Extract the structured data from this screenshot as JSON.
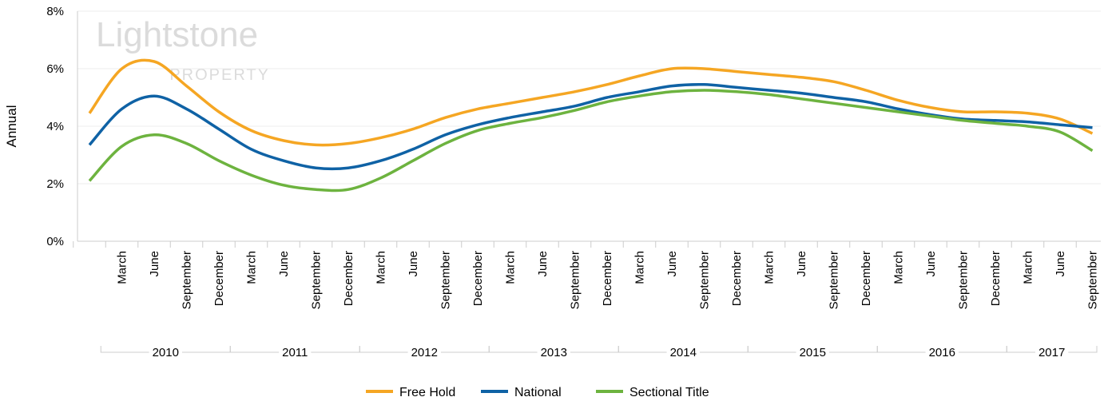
{
  "chart_data": {
    "type": "line",
    "y_label": "Annual",
    "watermark": {
      "title": "Lightstone",
      "subtitle": "PROPERTY"
    },
    "categories": [
      null,
      "March",
      "June",
      "September",
      "December",
      "March",
      "June",
      "September",
      "December",
      "March",
      "June",
      "September",
      "December",
      "March",
      "June",
      "September",
      "December",
      "March",
      "June",
      "September",
      "December",
      "March",
      "June",
      "September",
      "December",
      "March",
      "June",
      "September",
      "December",
      "March",
      "June",
      "September"
    ],
    "x_groups": [
      "2010",
      "2011",
      "2012",
      "2013",
      "2014",
      "2015",
      "2016",
      "2017"
    ],
    "series": [
      {
        "name": "Free Hold",
        "color": "#f5a623",
        "values": [
          4.45,
          6.0,
          6.25,
          5.4,
          4.5,
          3.85,
          3.5,
          3.35,
          3.4,
          3.6,
          3.9,
          4.3,
          4.6,
          4.8,
          5.0,
          5.2,
          5.45,
          5.75,
          6.0,
          6.0,
          5.9,
          5.8,
          5.7,
          5.55,
          5.25,
          4.9,
          4.65,
          4.5,
          4.5,
          4.45,
          4.25,
          3.75
        ]
      },
      {
        "name": "National",
        "color": "#0f62a5",
        "values": [
          3.35,
          4.6,
          5.05,
          4.6,
          3.9,
          3.2,
          2.8,
          2.55,
          2.55,
          2.8,
          3.2,
          3.7,
          4.05,
          4.3,
          4.5,
          4.7,
          5.0,
          5.2,
          5.4,
          5.45,
          5.35,
          5.25,
          5.15,
          5.0,
          4.85,
          4.6,
          4.4,
          4.25,
          4.2,
          4.15,
          4.05,
          3.95
        ]
      },
      {
        "name": "Sectional Title",
        "color": "#6db33f",
        "values": [
          2.1,
          3.3,
          3.7,
          3.4,
          2.8,
          2.3,
          1.95,
          1.8,
          1.8,
          2.2,
          2.8,
          3.4,
          3.85,
          4.1,
          4.3,
          4.55,
          4.85,
          5.05,
          5.2,
          5.25,
          5.2,
          5.1,
          4.95,
          4.8,
          4.65,
          4.5,
          4.35,
          4.2,
          4.1,
          4.0,
          3.8,
          3.15
        ]
      }
    ],
    "ylim": [
      0,
      8
    ],
    "yticks": [
      {
        "value": 0,
        "label": "0%"
      },
      {
        "value": 2,
        "label": "2%"
      },
      {
        "value": 4,
        "label": "4%"
      },
      {
        "value": 6,
        "label": "6%"
      },
      {
        "value": 8,
        "label": "8%"
      }
    ],
    "grid": true,
    "legend": "bottom"
  }
}
